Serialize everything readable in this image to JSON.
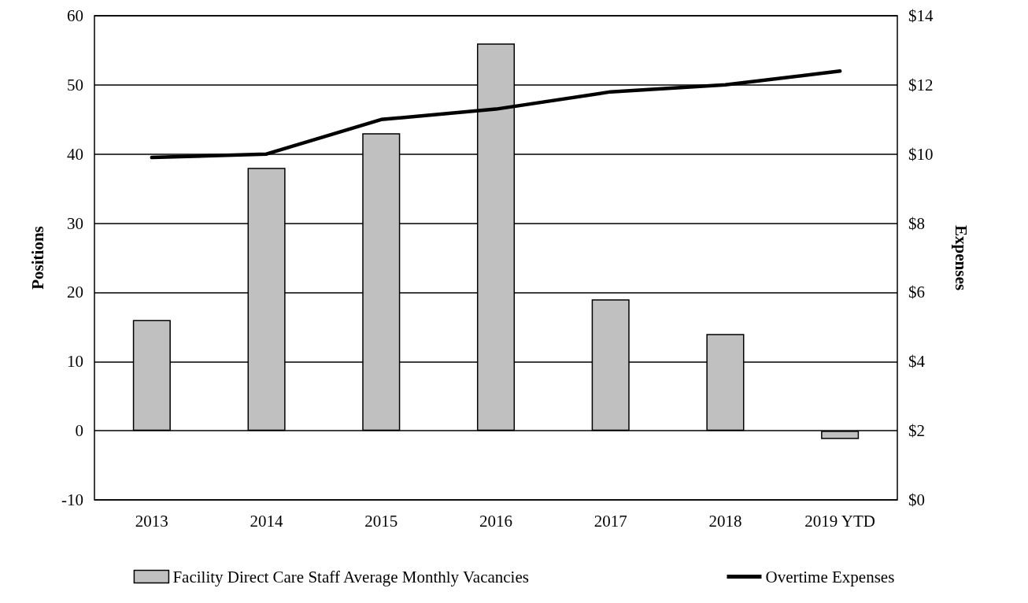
{
  "chart_data": {
    "type": "bar",
    "xlabel": null,
    "ylabel": "Positions",
    "y2label": "Expenses",
    "categories": [
      "2013",
      "2014",
      "2015",
      "2016",
      "2017",
      "2018",
      "2019 YTD"
    ],
    "series": [
      {
        "name": "Facility Direct Care Staff Average Monthly Vacancies",
        "color": "#c0c0c0",
        "values": [
          16,
          38,
          43,
          56,
          19,
          14,
          -1.2
        ]
      },
      {
        "name": "Overtime Expenses",
        "type": "line",
        "axis": "y2",
        "color": "#000000",
        "marker": "none",
        "line_style": "solid",
        "values": [
          9.9,
          10.0,
          11.0,
          11.3,
          11.8,
          12.0,
          12.4
        ]
      }
    ],
    "ylim": [
      -10,
      60
    ],
    "yticks": [
      -10,
      0,
      10,
      20,
      30,
      40,
      50,
      60
    ],
    "y2lim": [
      0,
      14
    ],
    "y2ticks": [
      {
        "value": 0,
        "label": "$0"
      },
      {
        "value": 2,
        "label": "$2"
      },
      {
        "value": 4,
        "label": "$4"
      },
      {
        "value": 6,
        "label": "$6"
      },
      {
        "value": 8,
        "label": "$8"
      },
      {
        "value": 10,
        "label": "$10"
      },
      {
        "value": 12,
        "label": "$12"
      },
      {
        "value": 14,
        "label": "$14"
      }
    ],
    "grid": "y",
    "legend": "bottom"
  }
}
